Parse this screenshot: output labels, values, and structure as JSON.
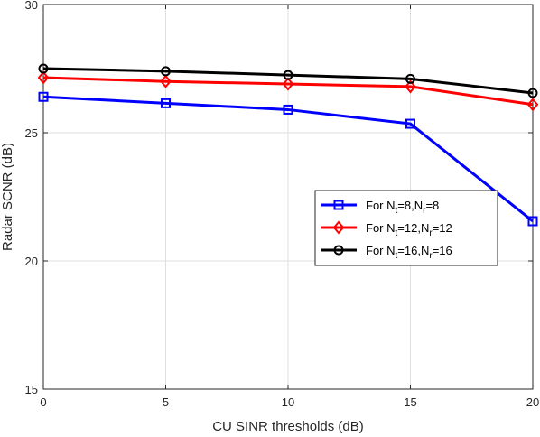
{
  "chart_data": {
    "type": "line",
    "xlabel": "CU SINR thresholds (dB)",
    "ylabel": "Radar SCNR (dB)",
    "x": [
      0,
      5,
      10,
      15,
      20
    ],
    "xticks": [
      "0",
      "5",
      "10",
      "15",
      "20"
    ],
    "yticks": [
      "15",
      "20",
      "25",
      "30"
    ],
    "xlim": [
      0,
      20
    ],
    "ylim": [
      15,
      30
    ],
    "grid": true,
    "legend_position": "center-right",
    "series": [
      {
        "legend": {
          "prefix": "For N",
          "sub1": "t",
          "mid": "=8,N",
          "sub2": "r",
          "suffix": "=8"
        },
        "color": "#0000ff",
        "marker": "square",
        "values": [
          26.4,
          26.15,
          25.9,
          25.35,
          21.55
        ]
      },
      {
        "legend": {
          "prefix": "For N",
          "sub1": "t",
          "mid": "=12,N",
          "sub2": "r",
          "suffix": "=12"
        },
        "color": "#ff0000",
        "marker": "diamond",
        "values": [
          27.15,
          27.0,
          26.9,
          26.8,
          26.1
        ]
      },
      {
        "legend": {
          "prefix": "For N",
          "sub1": "t",
          "mid": "=16,N",
          "sub2": "r",
          "suffix": "=16"
        },
        "color": "#000000",
        "marker": "circle",
        "values": [
          27.5,
          27.4,
          27.25,
          27.1,
          26.55
        ]
      }
    ]
  }
}
